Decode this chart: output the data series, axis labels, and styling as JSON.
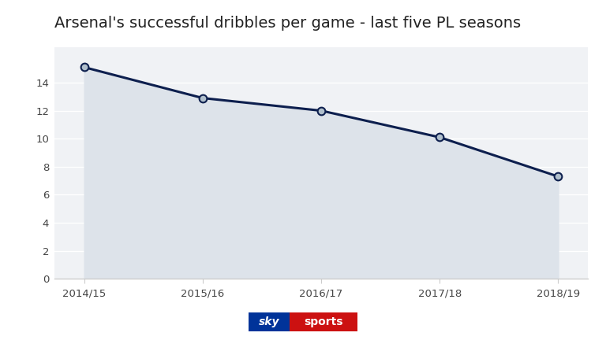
{
  "title": "Arsenal's successful dribbles per game - last five PL seasons",
  "seasons": [
    "2014/15",
    "2015/16",
    "2016/17",
    "2017/18",
    "2018/19"
  ],
  "values": [
    15.1,
    12.9,
    12.0,
    10.1,
    7.3
  ],
  "line_color": "#0d1f4e",
  "fill_color": "#dde3ea",
  "marker_fill_color": "#b0bfcc",
  "marker_edge_color": "#0d1f4e",
  "background_color": "#ffffff",
  "plot_bg_color": "#f0f2f5",
  "title_fontsize": 14,
  "ylim": [
    0,
    16.5
  ],
  "yticks": [
    0,
    2,
    4,
    6,
    8,
    10,
    12,
    14
  ],
  "grid_color": "#ffffff",
  "tick_color": "#444444",
  "axis_color": "#cccccc",
  "sky_blue": "#003399",
  "sky_red": "#cc1111"
}
